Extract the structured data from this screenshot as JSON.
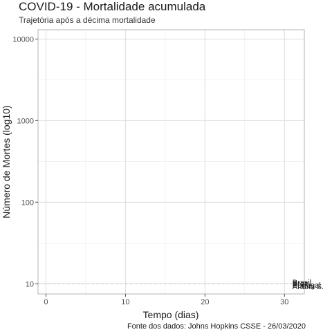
{
  "chart_data": {
    "type": "line",
    "title": "COVID-19 - Mortalidade acumulada",
    "subtitle": "Trajetória após a décima mortalidade",
    "caption": "Fonte dos dados: Johns Hopkins CSSE - 26/03/2020",
    "xlabel": "Tempo (dias)",
    "ylabel": "Número de Mortes (log10)",
    "xlim": [
      -1,
      32.5
    ],
    "ylim": [
      7.5,
      13000
    ],
    "y_scale": "log10",
    "x_ticks": [
      0,
      10,
      20,
      30
    ],
    "y_ticks": [
      10,
      100,
      1000,
      10000
    ],
    "grid": true,
    "reference_line": {
      "y": 10,
      "style": "dashed"
    },
    "series": [
      {
        "name": "Brasil",
        "x": [
          31
        ],
        "y": [
          10.5
        ]
      },
      {
        "name": "Brazil",
        "x": [
          31
        ],
        "y": [
          10.1
        ]
      },
      {
        "name": "Portugal",
        "x": [
          31
        ],
        "y": [
          9.7
        ]
      },
      {
        "name": "Arábia S.",
        "x": [
          31
        ],
        "y": [
          9.3
        ]
      }
    ]
  }
}
